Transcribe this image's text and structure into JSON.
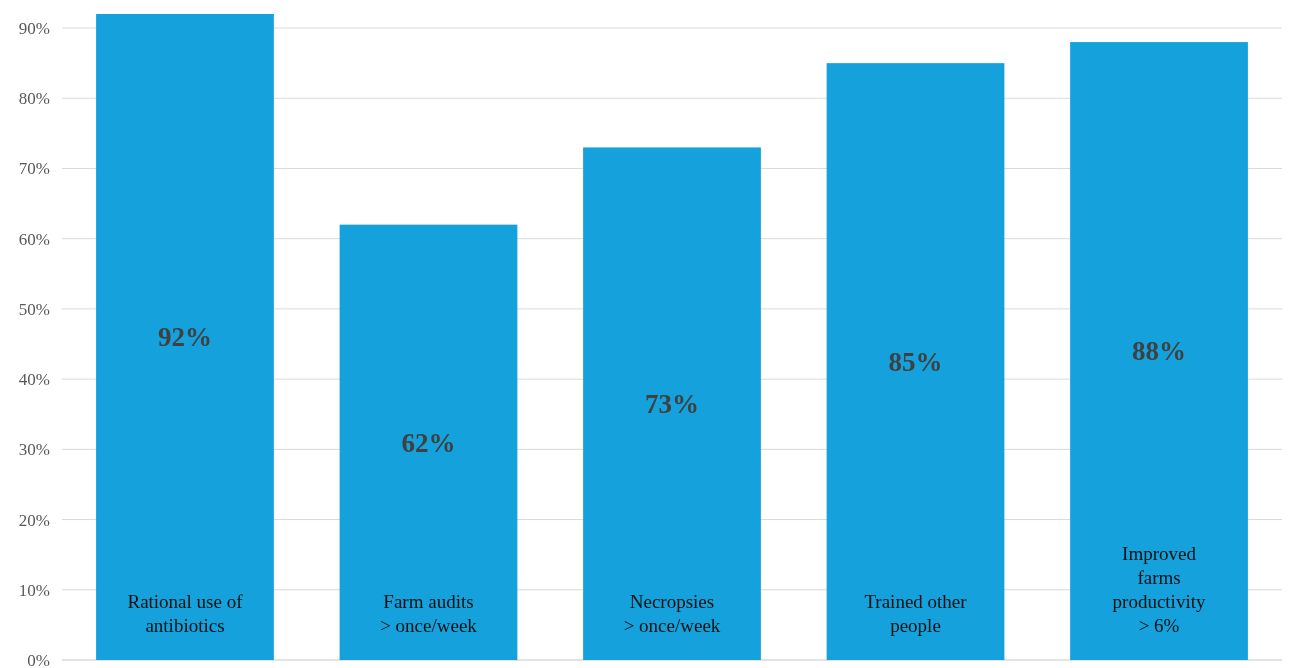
{
  "chart_data": {
    "type": "bar",
    "categories": [
      "Rational use of\nantibiotics",
      "Farm audits\n> once/week",
      "Necropsies\n> once/week",
      "Trained other\npeople",
      "Improved\nfarms\nproductivity\n> 6%"
    ],
    "values": [
      92,
      62,
      73,
      85,
      88
    ],
    "value_labels": [
      "92%",
      "62%",
      "73%",
      "85%",
      "88%"
    ],
    "color": "#14a1dc",
    "grid": "y",
    "ylim": [
      0,
      92
    ],
    "yticks": [
      {
        "value": 0,
        "label": "0%"
      },
      {
        "value": 10,
        "label": "10%"
      },
      {
        "value": 20,
        "label": "20%"
      },
      {
        "value": 30,
        "label": "30%"
      },
      {
        "value": 40,
        "label": "40%"
      },
      {
        "value": 50,
        "label": "50%"
      },
      {
        "value": 60,
        "label": "60%"
      },
      {
        "value": 70,
        "label": "70%"
      },
      {
        "value": 80,
        "label": "80%"
      },
      {
        "value": 90,
        "label": "90%"
      }
    ]
  }
}
